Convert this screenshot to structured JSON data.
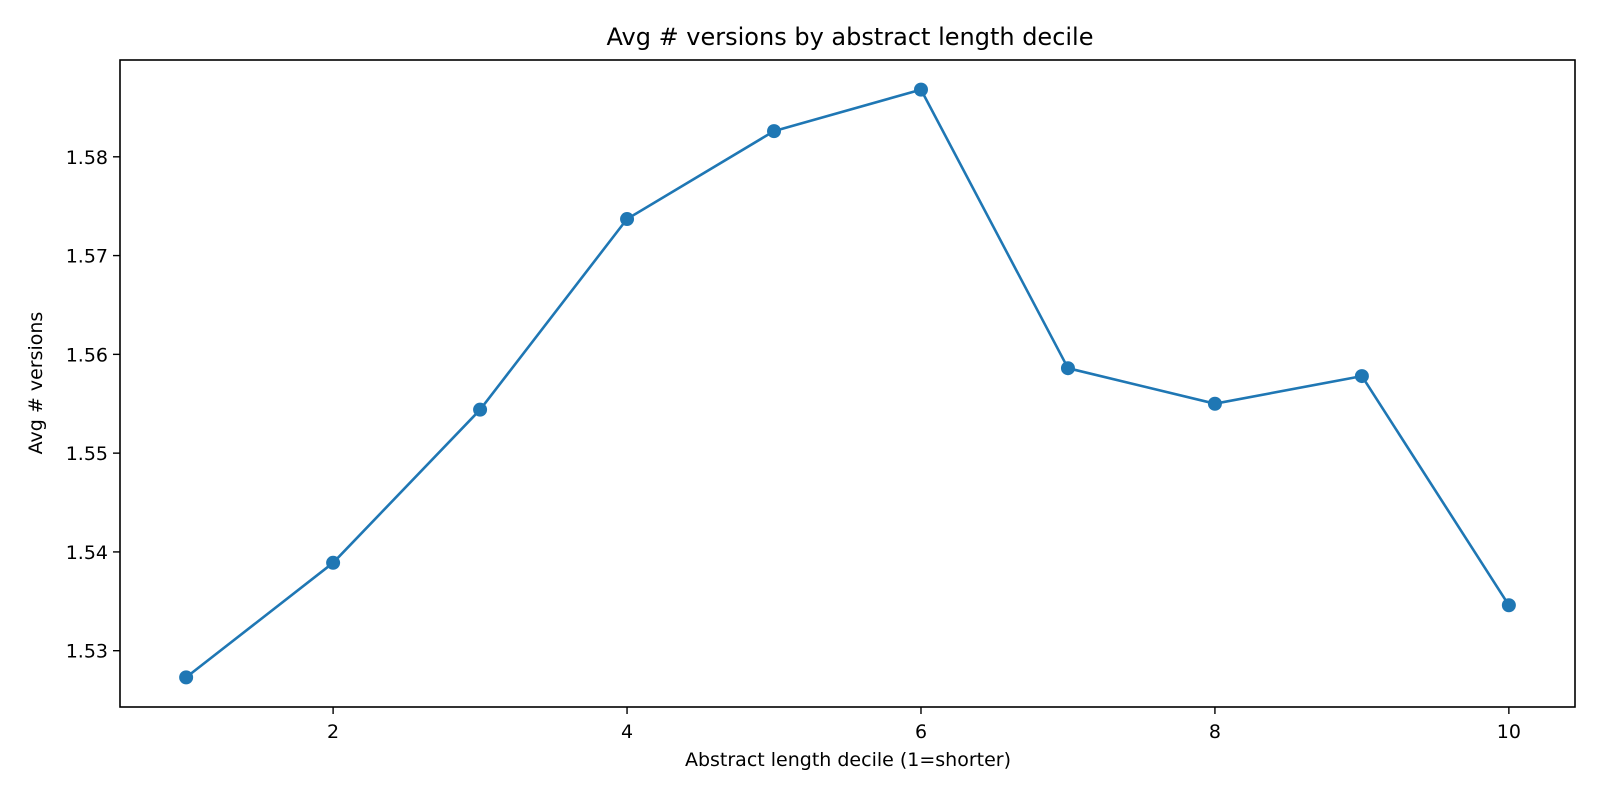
{
  "chart_data": {
    "type": "line",
    "title": "Avg # versions by abstract length decile",
    "xlabel": "Abstract length decile (1=shorter)",
    "ylabel": "Avg # versions",
    "x": [
      1,
      2,
      3,
      4,
      5,
      6,
      7,
      8,
      9,
      10
    ],
    "series": [
      {
        "values": [
          1.5273,
          1.5389,
          1.5544,
          1.5737,
          1.5826,
          1.5868,
          1.5586,
          1.555,
          1.5578,
          1.5346
        ],
        "color": "#1f77b4",
        "marker": "circle"
      }
    ],
    "xlim": [
      0.55,
      10.45
    ],
    "ylim": [
      1.5243,
      1.5898
    ],
    "xticks": [
      2,
      4,
      6,
      8,
      10
    ],
    "xtick_labels": [
      "2",
      "4",
      "6",
      "8",
      "10"
    ],
    "yticks": [
      1.53,
      1.54,
      1.55,
      1.56,
      1.57,
      1.58
    ],
    "ytick_labels": [
      "1.53",
      "1.54",
      "1.55",
      "1.56",
      "1.57",
      "1.58"
    ],
    "grid": false,
    "legend": "none"
  }
}
